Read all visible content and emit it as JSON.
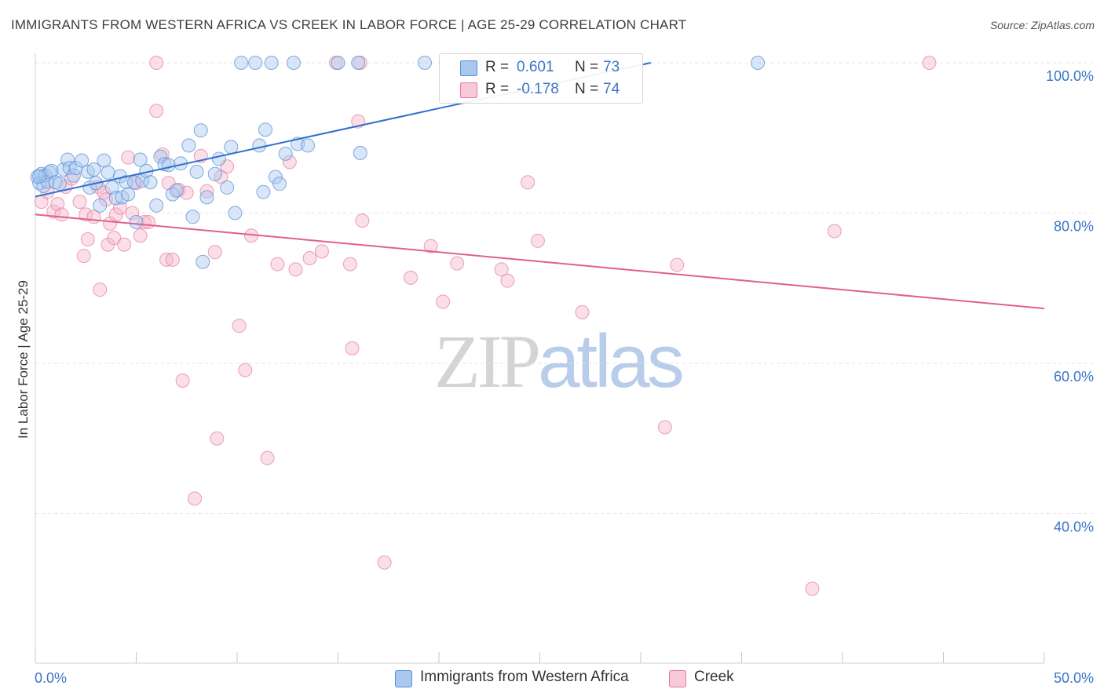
{
  "header": {
    "title": "IMMIGRANTS FROM WESTERN AFRICA VS CREEK IN LABOR FORCE | AGE 25-29 CORRELATION CHART",
    "source": "Source: ZipAtlas.com"
  },
  "watermark": {
    "part1": "ZIP",
    "part2": "atlas"
  },
  "legend": {
    "r_label": "R =",
    "n_label": "N =",
    "series": [
      {
        "name": "Immigrants from Western Africa",
        "r": "0.601",
        "n": "73"
      },
      {
        "name": "Creek",
        "r": "-0.178",
        "n": "74"
      }
    ]
  },
  "colors": {
    "blue_fill": "#a8c8f0",
    "blue_stroke": "#5b8fd4",
    "blue_line": "#2f6fce",
    "pink_fill": "#f5b6cb",
    "pink_stroke": "#e57a9d",
    "pink_line": "#e0608c",
    "tick_text": "#3a74c8",
    "grid": "#e3e3e3"
  },
  "chart_data": {
    "type": "scatter",
    "title": "IMMIGRANTS FROM WESTERN AFRICA VS CREEK IN LABOR FORCE | AGE 25-29 CORRELATION CHART",
    "xlabel": "",
    "ylabel": "In Labor Force | Age 25-29",
    "xlim": [
      0,
      50
    ],
    "ylim": [
      21,
      102
    ],
    "x_tick_labels": [
      {
        "value": 0,
        "label": "0.0%"
      },
      {
        "value": 50,
        "label": "50.0%"
      }
    ],
    "x_minor_ticks": [
      0,
      5,
      10,
      15,
      20,
      25,
      30,
      35,
      40,
      45,
      50
    ],
    "y_tick_labels": [
      {
        "value": 100,
        "label": "100.0%"
      },
      {
        "value": 80,
        "label": "80.0%"
      },
      {
        "value": 60,
        "label": "60.0%"
      },
      {
        "value": 40,
        "label": "40.0%"
      }
    ],
    "grid": true,
    "legend_position": "top-center",
    "series": [
      {
        "name": "Immigrants from Western Africa",
        "trend": {
          "x": [
            0,
            30.5
          ],
          "y": [
            82.2,
            100
          ]
        },
        "trend_extension": {
          "x": [
            20.1,
            30.5
          ],
          "y": [
            94,
            100
          ]
        },
        "points": [
          [
            0.1,
            84.8
          ],
          [
            0.2,
            84.0
          ],
          [
            0.3,
            85.2
          ],
          [
            0.4,
            83.6
          ],
          [
            0.5,
            85.0
          ],
          [
            0.6,
            84.2
          ],
          [
            0.7,
            85.4
          ],
          [
            0.8,
            85.6
          ],
          [
            1.0,
            84.1
          ],
          [
            1.2,
            83.9
          ],
          [
            1.4,
            85.8
          ],
          [
            1.6,
            87.1
          ],
          [
            1.7,
            86.0
          ],
          [
            1.9,
            85.0
          ],
          [
            2.0,
            86.0
          ],
          [
            2.3,
            87.0
          ],
          [
            2.6,
            85.5
          ],
          [
            2.7,
            83.4
          ],
          [
            2.9,
            85.8
          ],
          [
            3.0,
            84.0
          ],
          [
            3.2,
            81.0
          ],
          [
            3.4,
            87.0
          ],
          [
            3.6,
            85.4
          ],
          [
            3.8,
            83.4
          ],
          [
            4.0,
            82.0
          ],
          [
            4.2,
            84.9
          ],
          [
            4.3,
            82.1
          ],
          [
            4.5,
            84.1
          ],
          [
            4.6,
            82.5
          ],
          [
            4.9,
            84.1
          ],
          [
            5.0,
            78.8
          ],
          [
            5.2,
            87.1
          ],
          [
            5.3,
            84.3
          ],
          [
            5.5,
            85.6
          ],
          [
            5.7,
            84.1
          ],
          [
            6.0,
            81.0
          ],
          [
            6.2,
            87.5
          ],
          [
            6.4,
            86.5
          ],
          [
            6.6,
            86.4
          ],
          [
            6.8,
            82.5
          ],
          [
            7.0,
            83.0
          ],
          [
            7.2,
            86.6
          ],
          [
            7.6,
            89.0
          ],
          [
            7.8,
            79.5
          ],
          [
            8.0,
            85.5
          ],
          [
            8.2,
            91.0
          ],
          [
            8.3,
            73.5
          ],
          [
            8.5,
            82.1
          ],
          [
            8.9,
            85.2
          ],
          [
            9.1,
            87.2
          ],
          [
            9.5,
            83.4
          ],
          [
            9.7,
            88.8
          ],
          [
            9.9,
            80.0
          ],
          [
            10.2,
            100
          ],
          [
            10.9,
            100
          ],
          [
            11.1,
            89.0
          ],
          [
            11.3,
            82.8
          ],
          [
            11.4,
            91.1
          ],
          [
            11.7,
            100
          ],
          [
            11.9,
            84.8
          ],
          [
            12.1,
            83.9
          ],
          [
            12.4,
            87.9
          ],
          [
            12.8,
            100
          ],
          [
            13.0,
            89.2
          ],
          [
            13.5,
            89.0
          ],
          [
            15.0,
            100
          ],
          [
            16.0,
            100
          ],
          [
            16.1,
            88.0
          ],
          [
            19.3,
            100
          ],
          [
            21.8,
            100
          ],
          [
            22.2,
            100
          ],
          [
            35.8,
            100
          ],
          [
            0.2,
            84.9
          ]
        ]
      },
      {
        "name": "Creek",
        "trend": {
          "x": [
            0,
            50
          ],
          "y": [
            79.8,
            67.3
          ]
        },
        "points": [
          [
            0.3,
            81.5
          ],
          [
            0.6,
            82.8
          ],
          [
            0.9,
            80.2
          ],
          [
            1.1,
            81.2
          ],
          [
            1.3,
            79.8
          ],
          [
            1.5,
            83.5
          ],
          [
            1.8,
            84.6
          ],
          [
            2.2,
            81.5
          ],
          [
            2.5,
            79.8
          ],
          [
            2.4,
            74.3
          ],
          [
            2.6,
            76.5
          ],
          [
            2.9,
            79.5
          ],
          [
            3.1,
            83.5
          ],
          [
            3.2,
            69.8
          ],
          [
            3.4,
            82.7
          ],
          [
            3.5,
            81.8
          ],
          [
            3.6,
            75.8
          ],
          [
            3.7,
            78.6
          ],
          [
            3.9,
            76.7
          ],
          [
            4.0,
            79.8
          ],
          [
            4.2,
            80.7
          ],
          [
            4.4,
            75.8
          ],
          [
            4.6,
            87.4
          ],
          [
            4.8,
            80.0
          ],
          [
            5.0,
            84.0
          ],
          [
            5.2,
            77.0
          ],
          [
            5.4,
            78.8
          ],
          [
            5.6,
            78.8
          ],
          [
            6.0,
            93.6
          ],
          [
            6.3,
            87.8
          ],
          [
            6.5,
            73.8
          ],
          [
            6.6,
            84.0
          ],
          [
            6.8,
            73.8
          ],
          [
            7.1,
            83.1
          ],
          [
            7.3,
            57.7
          ],
          [
            7.5,
            82.7
          ],
          [
            7.9,
            42.0
          ],
          [
            8.2,
            87.6
          ],
          [
            8.5,
            82.9
          ],
          [
            8.9,
            74.8
          ],
          [
            9.0,
            50.0
          ],
          [
            9.2,
            84.8
          ],
          [
            9.5,
            86.2
          ],
          [
            10.1,
            65.0
          ],
          [
            10.4,
            59.1
          ],
          [
            10.7,
            77.0
          ],
          [
            11.5,
            47.4
          ],
          [
            12.0,
            73.2
          ],
          [
            12.6,
            86.8
          ],
          [
            12.9,
            72.5
          ],
          [
            13.6,
            74.0
          ],
          [
            14.2,
            74.9
          ],
          [
            15.6,
            73.2
          ],
          [
            15.7,
            62.0
          ],
          [
            16.0,
            92.2
          ],
          [
            16.2,
            79.0
          ],
          [
            17.3,
            33.5
          ],
          [
            18.6,
            71.4
          ],
          [
            19.6,
            75.6
          ],
          [
            20.2,
            68.2
          ],
          [
            20.9,
            73.3
          ],
          [
            23.1,
            72.5
          ],
          [
            23.4,
            71.0
          ],
          [
            24.4,
            84.1
          ],
          [
            24.9,
            76.3
          ],
          [
            27.1,
            66.8
          ],
          [
            31.2,
            51.5
          ],
          [
            31.8,
            73.1
          ],
          [
            38.5,
            30.0
          ],
          [
            39.6,
            77.6
          ],
          [
            44.3,
            100
          ],
          [
            6.0,
            100
          ],
          [
            16.1,
            100
          ],
          [
            14.9,
            100
          ]
        ]
      }
    ]
  }
}
